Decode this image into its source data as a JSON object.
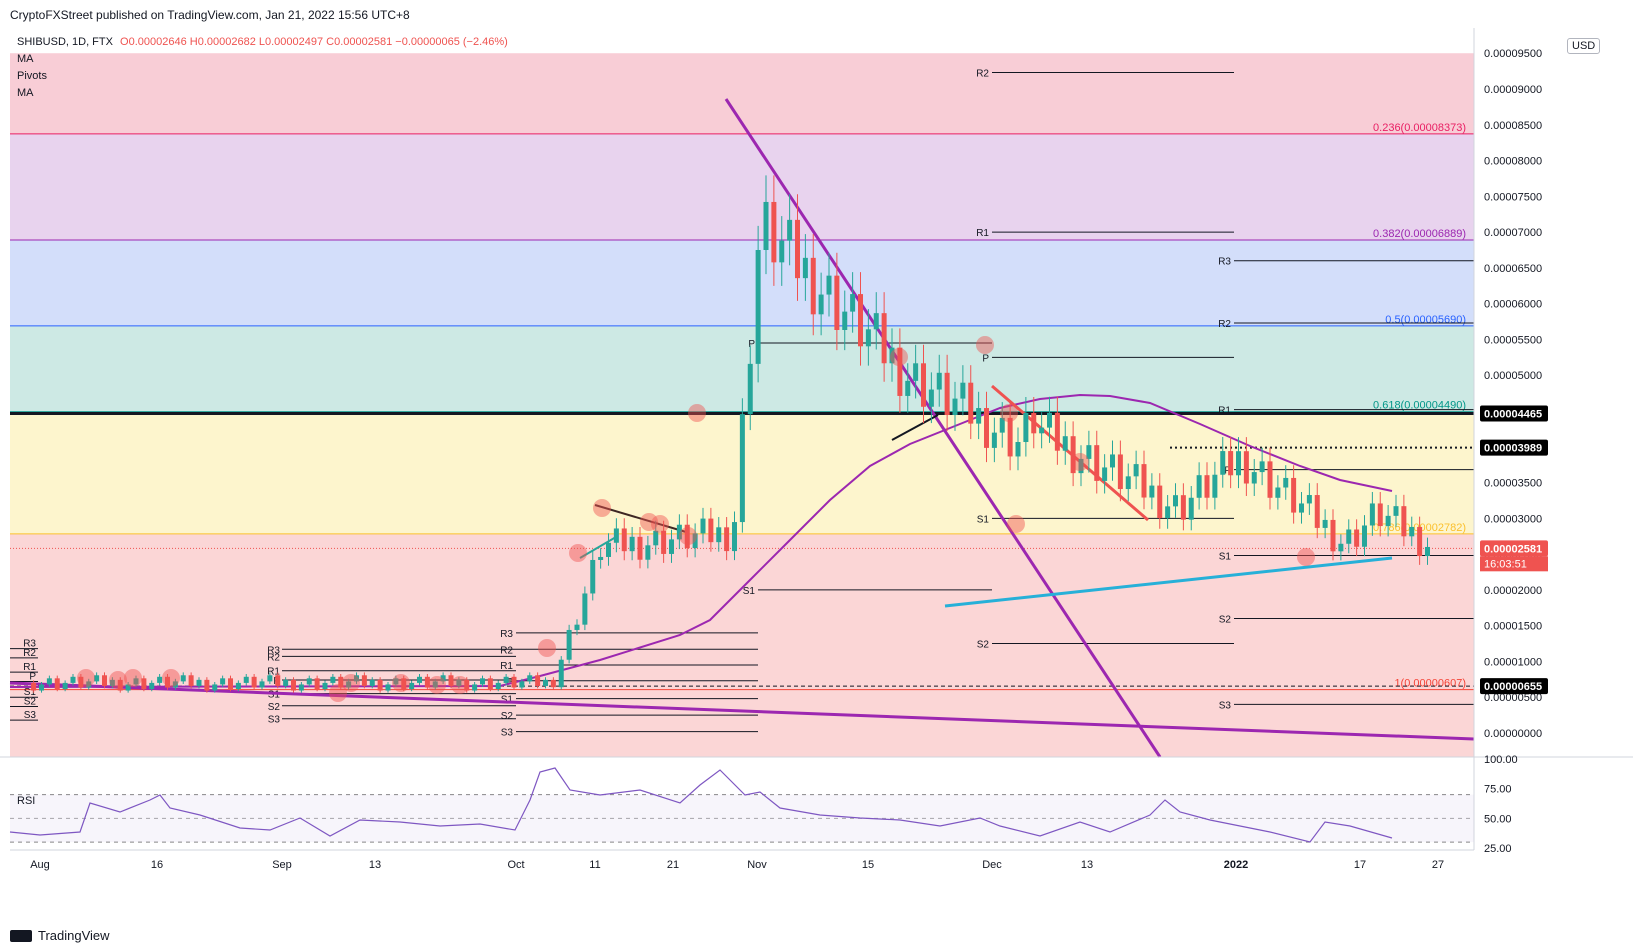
{
  "header": {
    "publisher": "CryptoFXStreet published on TradingView.com, Jan 21, 2022 15:56 UTC+8"
  },
  "legend": {
    "symbol": "SHIBUSD, 1D, FTX",
    "ohlc": "O0.00002646 H0.00002682 L0.00002497 C0.00002581 −0.00000065 (−2.46%)",
    "indicators": [
      "MA",
      "Pivots",
      "MA"
    ],
    "rsi_label": "RSI"
  },
  "axis": {
    "unit": "USD",
    "price_ticks": [
      "0.00009500",
      "0.00009000",
      "0.00008500",
      "0.00008000",
      "0.00007500",
      "0.00007000",
      "0.00006500",
      "0.00006000",
      "0.00005500",
      "0.00005000",
      "0.00004500",
      "0.00004000",
      "0.00003500",
      "0.00003000",
      "0.00002500",
      "0.00002000",
      "0.00001500",
      "0.00001000",
      "0.00000500",
      "0.00000000"
    ],
    "rsi_ticks": [
      "100.00",
      "75.00",
      "50.00",
      "25.00"
    ],
    "time_ticks": [
      "Aug",
      "16",
      "Sep",
      "13",
      "Oct",
      "11",
      "21",
      "Nov",
      "15",
      "Dec",
      "13",
      "2022",
      "17",
      "27"
    ]
  },
  "price_labels": {
    "level_4465": "0.00004465",
    "level_3989": "0.00003989",
    "last": "0.00002581",
    "countdown": "16:03:51",
    "level_655": "0.00000655"
  },
  "fib_labels": {
    "f0236": "0.236(0.00008373)",
    "f0382": "0.382(0.00006889)",
    "f05": "0.5(0.00005690)",
    "f0618": "0.618(0.00004490)",
    "f0786": "0.786(0.00002782)",
    "f1": "1(0.00000607)"
  },
  "pivot_labels": {
    "r3": "R3",
    "r2": "R2",
    "r1": "R1",
    "p": "P",
    "s1": "S1",
    "s2": "S2",
    "s3": "S3"
  },
  "branding": {
    "name": "TradingView"
  },
  "colors": {
    "bull": "#26a69a",
    "bear": "#ef5350",
    "ma": "#9c27b0",
    "ma_long": "#26b0d8",
    "trendline": "#9c27b0",
    "rsi": "#7e57c2"
  },
  "chart_data": {
    "type": "candlestick",
    "title": "",
    "timeframe": "1D",
    "ohlc_closes_approx": [
      {
        "period": "Aug",
        "close": 7e-06
      },
      {
        "period": "Sep",
        "close": 7e-06
      },
      {
        "period": "Oct 1",
        "close": 7.2e-06
      },
      {
        "period": "Oct 8",
        "close": 2.6e-05
      },
      {
        "period": "Oct 21",
        "close": 2.8e-05
      },
      {
        "period": "Oct 28",
        "close": 8e-05
      },
      {
        "period": "Nov 1",
        "close": 6.4e-05
      },
      {
        "period": "Nov 15",
        "close": 5e-05
      },
      {
        "period": "Dec 1",
        "close": 4.5e-05
      },
      {
        "period": "Dec 13",
        "close": 3.5e-05
      },
      {
        "period": "Dec 28",
        "close": 3.9e-05
      },
      {
        "period": "Jan 10 2022",
        "close": 2.6e-05
      },
      {
        "period": "Jan 14 2022",
        "close": 3.1e-05
      },
      {
        "period": "Jan 21 2022",
        "close": 2.581e-05
      }
    ],
    "last_bar": {
      "open": 2.646e-05,
      "high": 2.682e-05,
      "low": 2.497e-05,
      "close": 2.581e-05,
      "change": -6.5e-07,
      "change_pct": -2.46
    },
    "fibonacci": [
      {
        "level": 0.236,
        "price": 8.373e-05
      },
      {
        "level": 0.382,
        "price": 6.889e-05
      },
      {
        "level": 0.5,
        "price": 5.69e-05
      },
      {
        "level": 0.618,
        "price": 4.49e-05
      },
      {
        "level": 0.786,
        "price": 2.782e-05
      },
      {
        "level": 1,
        "price": 6.07e-06
      }
    ],
    "horizontal_levels": [
      4.465e-05,
      3.989e-05,
      6.55e-06
    ],
    "ylim": [
      0,
      9.5e-05
    ],
    "rsi_ylim": [
      25,
      100
    ],
    "rsi_guides": [
      70,
      50,
      30
    ]
  }
}
